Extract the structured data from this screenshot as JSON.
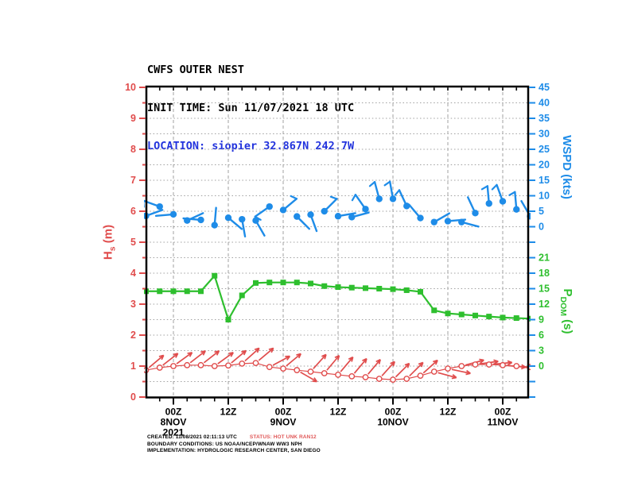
{
  "title": {
    "product": "CWFS OUTER NEST",
    "init_time": "INIT TIME: Sun 11/07/2021 18 UTC",
    "location": "LOCATION: siopier 32.867N 242.7W"
  },
  "axis_labels": {
    "hs": {
      "main": "H",
      "sub": "s",
      "rest": " (m)"
    },
    "wspd": {
      "main": "WSPD (kts)"
    },
    "pdom": {
      "main": "P",
      "sub": "DOM",
      "rest": " (s)"
    }
  },
  "footer": {
    "created": "CREATED: 11/08/2021 02:11:13 UTC",
    "status": "STATUS: HOT UNK RAN12",
    "boundary": "BOUNDARY CONDITIONS: US NOAA/NCEP/WNAW WW3 NPH",
    "implementation": "IMPLEMENTATION: HYDROLOGIC RESEARCH CENTER, SAN DIEGO"
  },
  "colors": {
    "hs": "#e04c4c",
    "wspd": "#1e8ce8",
    "pdom": "#2ebf2e",
    "location_text": "#2233dd",
    "status_text": "#e05858",
    "grid": "#a0a0a0",
    "axis_frame": "#000000"
  },
  "chart_data": {
    "type": "line",
    "title": "CWFS OUTER NEST",
    "x_hours": [
      0,
      3,
      6,
      9,
      12,
      15,
      18,
      21,
      24,
      27,
      30,
      33,
      36,
      39,
      42,
      45,
      48,
      51,
      54,
      57,
      60,
      63,
      66,
      69,
      72,
      75,
      78,
      81,
      84
    ],
    "x_axis": {
      "start": "18Z 7NOV2021",
      "major_tick_hours": [
        6,
        18,
        30,
        42,
        54,
        66,
        78
      ],
      "minor_step_hours": 3,
      "tick_labels": [
        [
          "00Z",
          "8NOV",
          "2021"
        ],
        [
          "12Z"
        ],
        [
          "00Z",
          "9NOV"
        ],
        [
          "12Z"
        ],
        [
          "00Z",
          "10NOV"
        ],
        [
          "12Z"
        ],
        [
          "00Z",
          "11NOV"
        ]
      ]
    },
    "y_axes": {
      "hs": {
        "label": "Hs (m)",
        "range": [
          0,
          10
        ],
        "tick_step": 1,
        "minor_step": 0.5,
        "side": "left",
        "color": "#e04c4c",
        "tick_values": [
          0,
          1,
          2,
          3,
          4,
          5,
          6,
          7,
          8,
          9,
          10
        ]
      },
      "wspd": {
        "label": "WSPD (kts)",
        "range": [
          0,
          45
        ],
        "tick_step": 5,
        "side": "right-upper",
        "color": "#1e8ce8",
        "tick_values": [
          45,
          40,
          35,
          30,
          25,
          20,
          15,
          10,
          5,
          0
        ]
      },
      "pdom": {
        "label": "PDOM (s)",
        "range": [
          0,
          21
        ],
        "tick_step": 3,
        "side": "right-lower",
        "color": "#2ebf2e",
        "tick_values": [
          21,
          18,
          15,
          12,
          9,
          6,
          3,
          0
        ]
      }
    },
    "grid": {
      "horizontal": "dotted",
      "vertical": "dashed",
      "on": true
    },
    "series": [
      {
        "name": "WSPD",
        "units": "kts",
        "axis": "wspd",
        "marker": "dot-with-wind-barb",
        "color": "#1e8ce8",
        "values": [
          3.5,
          6.5,
          4,
          2,
          2.2,
          0.5,
          2.9,
          2.4,
          2,
          6.5,
          5.4,
          3.3,
          3.9,
          5,
          3.4,
          3.1,
          5.7,
          9,
          9,
          6.7,
          2.8,
          1.5,
          1.8,
          1.5,
          4.4,
          7.5,
          8.2,
          5.6,
          3.4
        ],
        "staff_angles_deg": [
          20,
          160,
          185,
          25,
          175,
          85,
          -40,
          -80,
          -60,
          215,
          40,
          -45,
          -70,
          45,
          10,
          15,
          125,
          105,
          100,
          115,
          130,
          30,
          5,
          -15,
          115,
          95,
          110,
          95,
          120
        ]
      },
      {
        "name": "PDOM",
        "units": "s",
        "axis": "pdom",
        "marker": "filled-square-line",
        "color": "#2ebf2e",
        "values": [
          14.5,
          14.5,
          14.5,
          14.5,
          14.5,
          17.5,
          9,
          13.7,
          16.1,
          16.2,
          16.2,
          16.2,
          16,
          15.5,
          15.3,
          15.2,
          15.1,
          15,
          14.9,
          14.7,
          14.4,
          10.8,
          10.2,
          10,
          9.8,
          9.6,
          9.4,
          9.3,
          9.2
        ]
      },
      {
        "name": "HS",
        "units": "m",
        "axis": "hs",
        "marker": "open-circle-with-direction-arrow",
        "color": "#e04c4c",
        "values": [
          0.87,
          0.95,
          1,
          1.03,
          1.03,
          1,
          1.02,
          1.08,
          1.1,
          0.97,
          0.92,
          0.87,
          0.82,
          0.77,
          0.72,
          0.67,
          0.64,
          0.59,
          0.56,
          0.59,
          0.69,
          0.82,
          0.92,
          1,
          1.05,
          1.05,
          1.03,
          1,
          0.97
        ],
        "arrow_angles_deg": [
          40,
          38,
          36,
          38,
          38,
          36,
          40,
          42,
          40,
          28,
          40,
          -30,
          48,
          50,
          50,
          50,
          50,
          48,
          45,
          45,
          42,
          -15,
          -12,
          15,
          8,
          5,
          -5,
          -8,
          -10
        ]
      }
    ]
  }
}
